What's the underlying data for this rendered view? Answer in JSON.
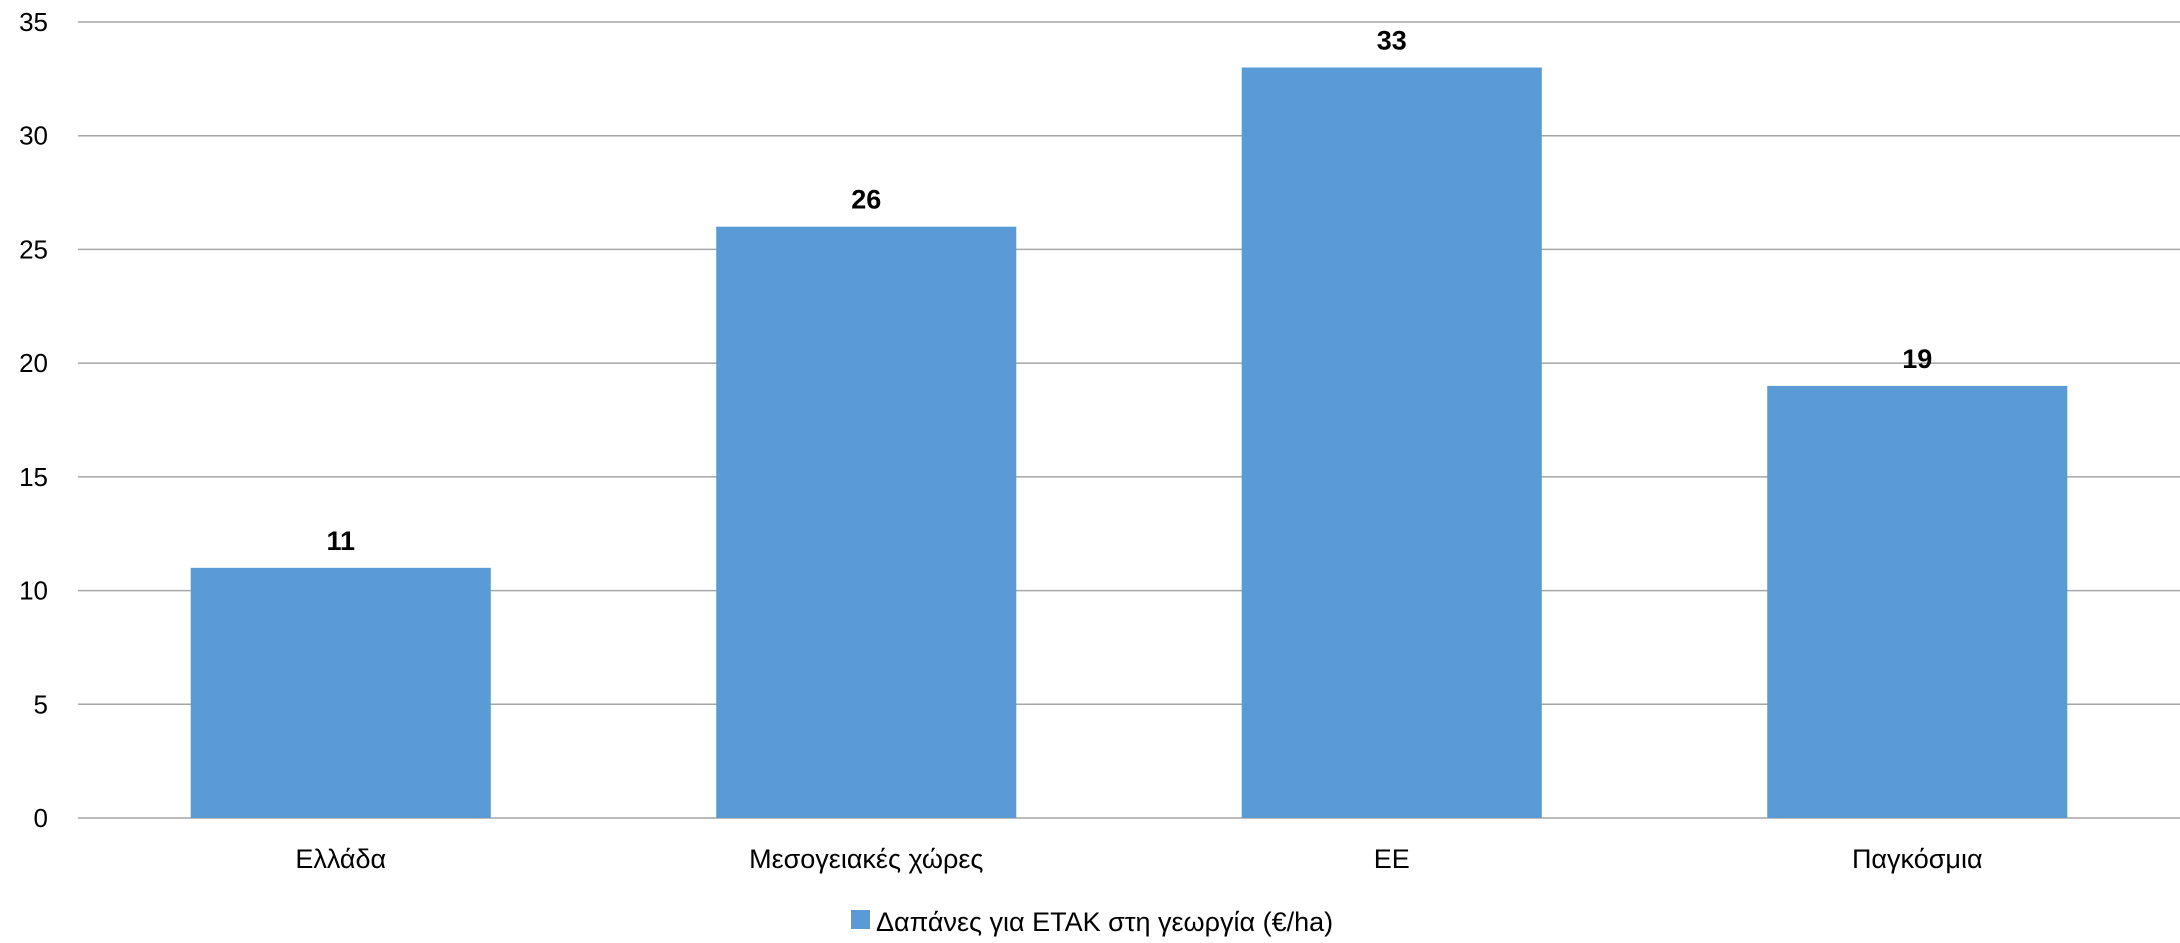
{
  "chart_data": {
    "type": "bar",
    "categories": [
      "Ελλάδα",
      "Μεσογειακές χώρες",
      "ΕΕ",
      "Παγκόσμια"
    ],
    "series": [
      {
        "name": "Δαπάνες για ΕΤΑΚ στη γεωργία (€/ha)",
        "values": [
          11,
          26,
          33,
          19
        ],
        "color": "#5b9bd5"
      }
    ],
    "ylim": [
      0,
      35
    ],
    "yticks": [
      0,
      5,
      10,
      15,
      20,
      25,
      30,
      35
    ],
    "grid": true,
    "legend_position": "bottom",
    "data_labels": true,
    "gridline_color": "#a6a6a6",
    "text_color": "#000000"
  }
}
